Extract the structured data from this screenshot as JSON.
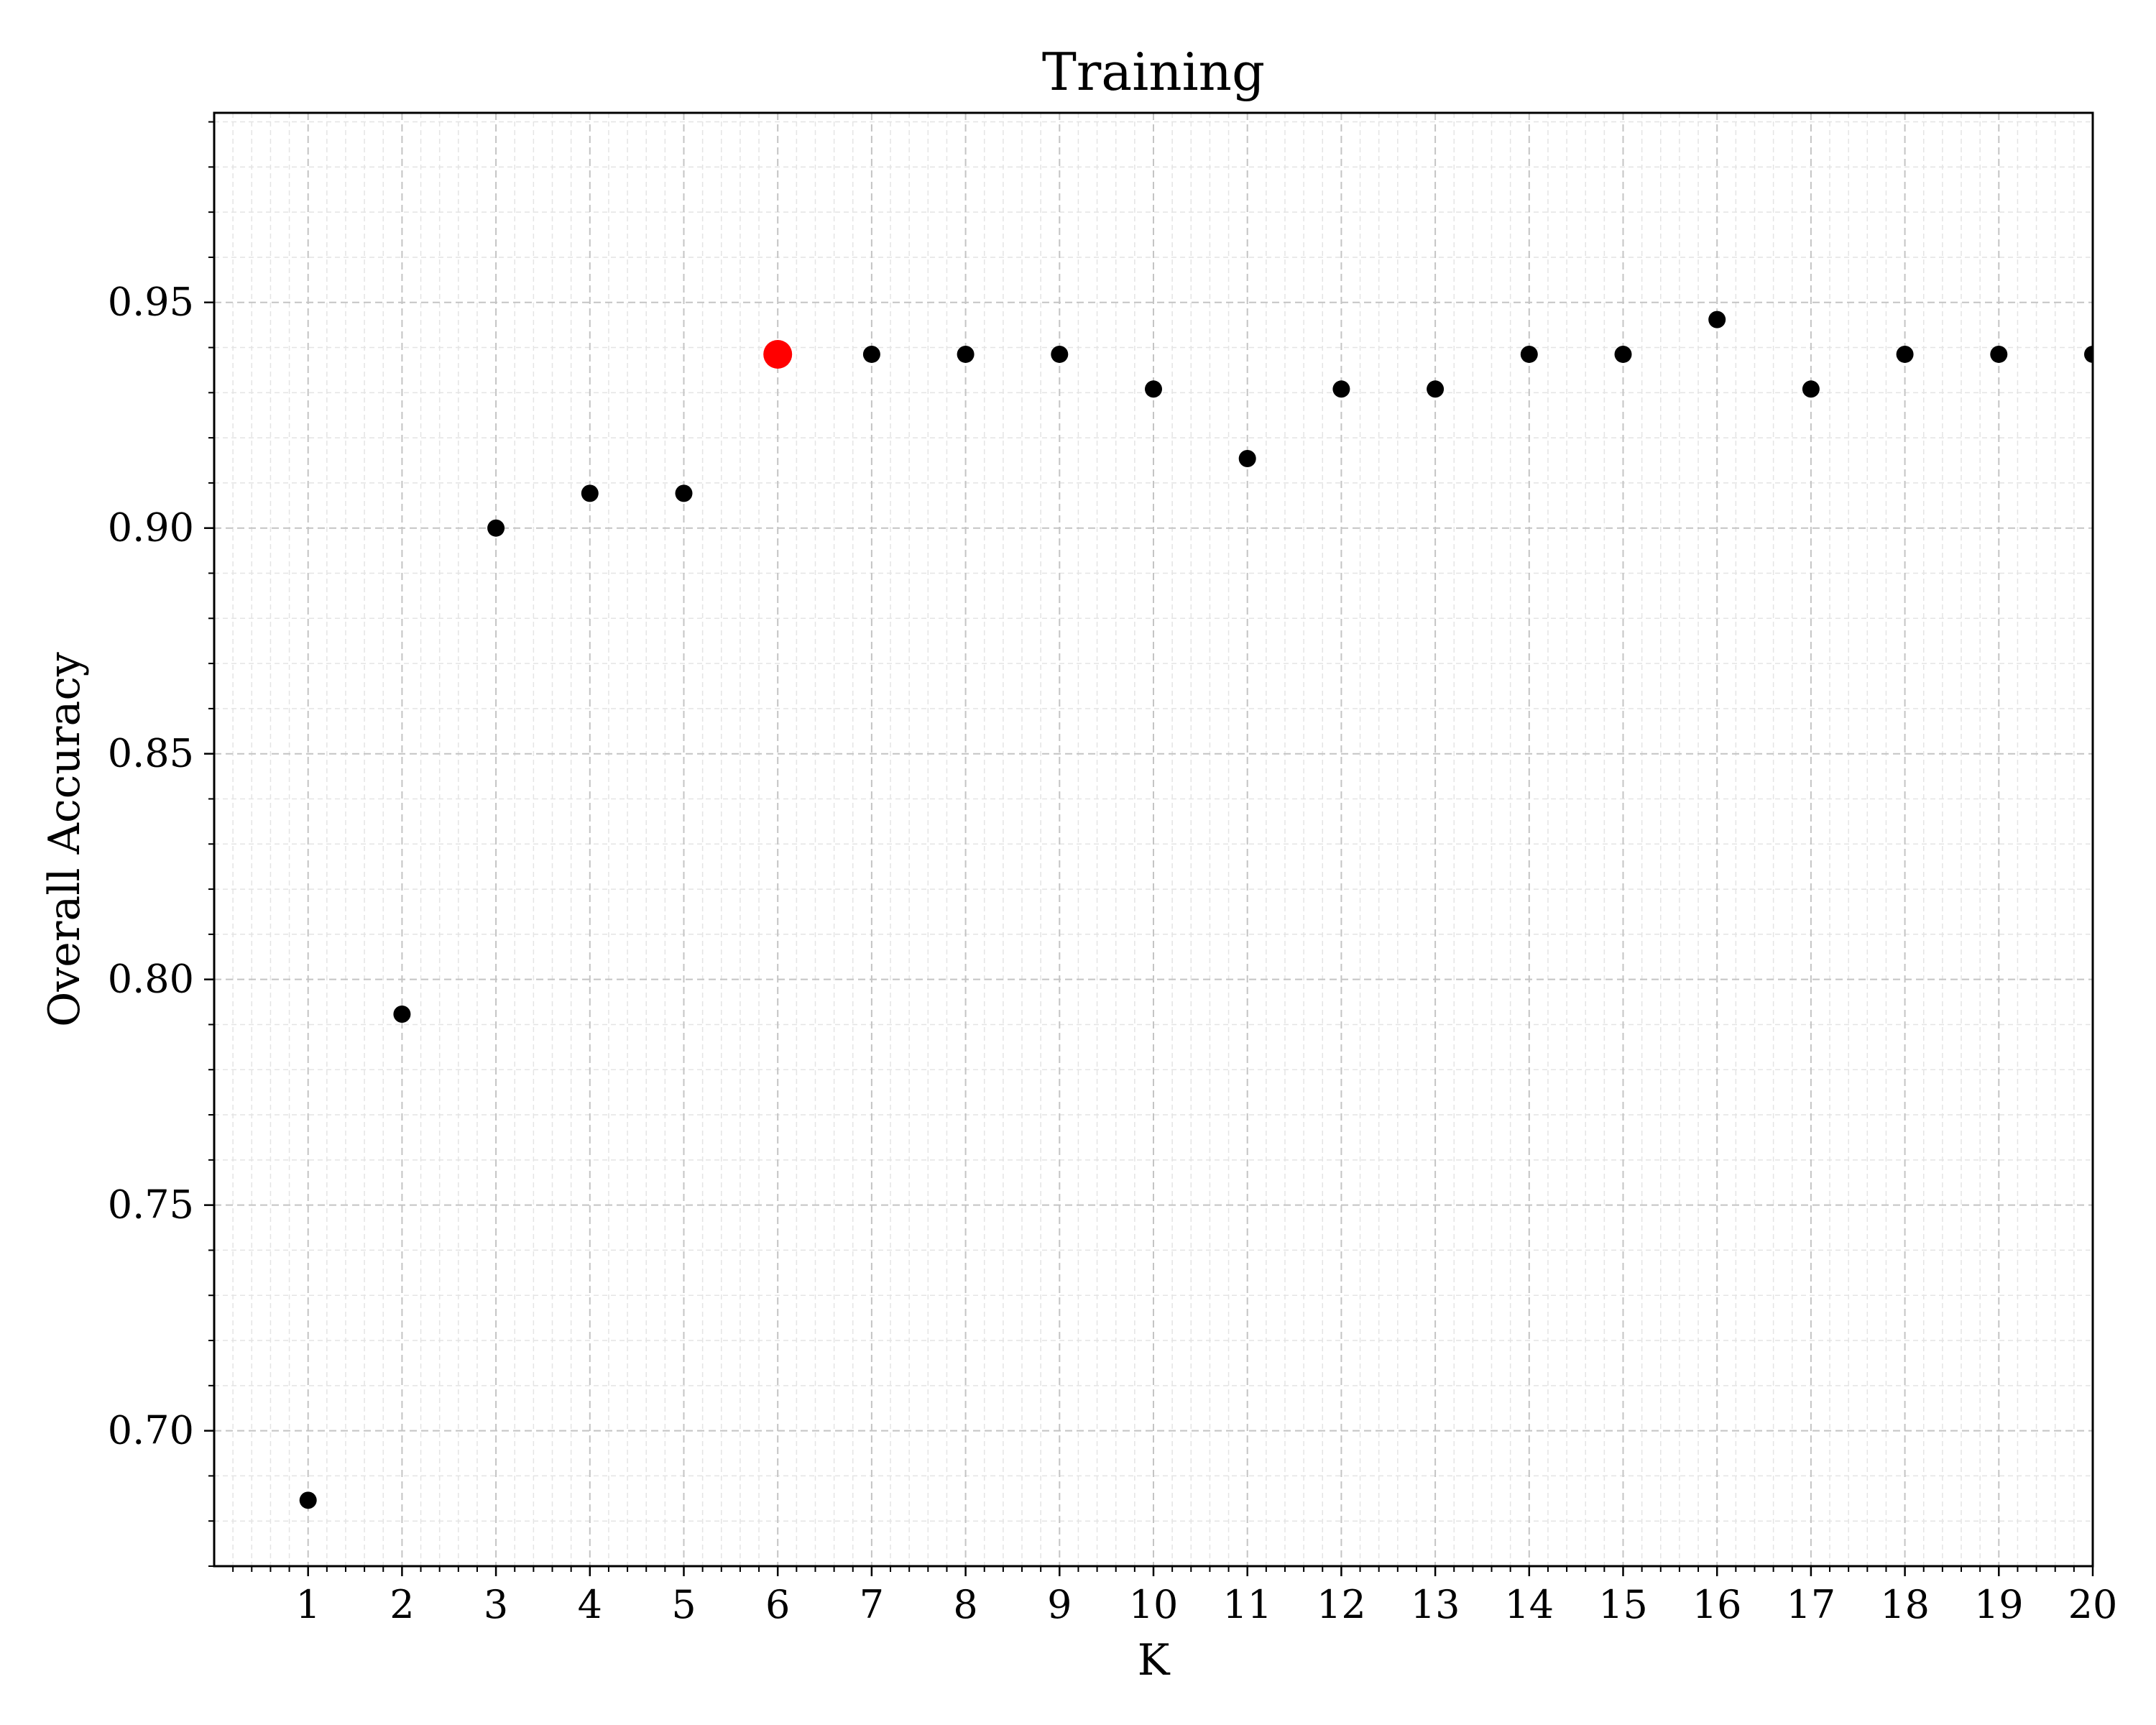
{
  "chart_data": {
    "type": "scatter",
    "title": "Training",
    "xlabel": "K",
    "ylabel": "Overall Accuracy",
    "xlim": [
      0,
      20
    ],
    "ylim": [
      0.67,
      0.992
    ],
    "x_ticks": [
      "1",
      "2",
      "3",
      "4",
      "5",
      "6",
      "7",
      "8",
      "9",
      "10",
      "11",
      "12",
      "13",
      "14",
      "15",
      "16",
      "17",
      "18",
      "19",
      "20"
    ],
    "y_ticks": [
      "0.70",
      "0.75",
      "0.80",
      "0.85",
      "0.90",
      "0.95"
    ],
    "grid": true,
    "colors": {
      "points": "#000000",
      "highlight": "#ff0000"
    },
    "series": [
      {
        "x": [
          1,
          2,
          3,
          4,
          5,
          6,
          7,
          8,
          9,
          10,
          11,
          12,
          13,
          14,
          15,
          16,
          17,
          18,
          19,
          20
        ],
        "y": [
          0.6846,
          0.7923,
          0.9,
          0.9077,
          0.9077,
          0.9385,
          0.9385,
          0.9385,
          0.9385,
          0.9308,
          0.9154,
          0.9308,
          0.9308,
          0.9385,
          0.9385,
          0.9462,
          0.9308,
          0.9385,
          0.9385,
          0.9385
        ]
      }
    ],
    "highlight": {
      "x": 6,
      "y": 0.9385
    }
  }
}
